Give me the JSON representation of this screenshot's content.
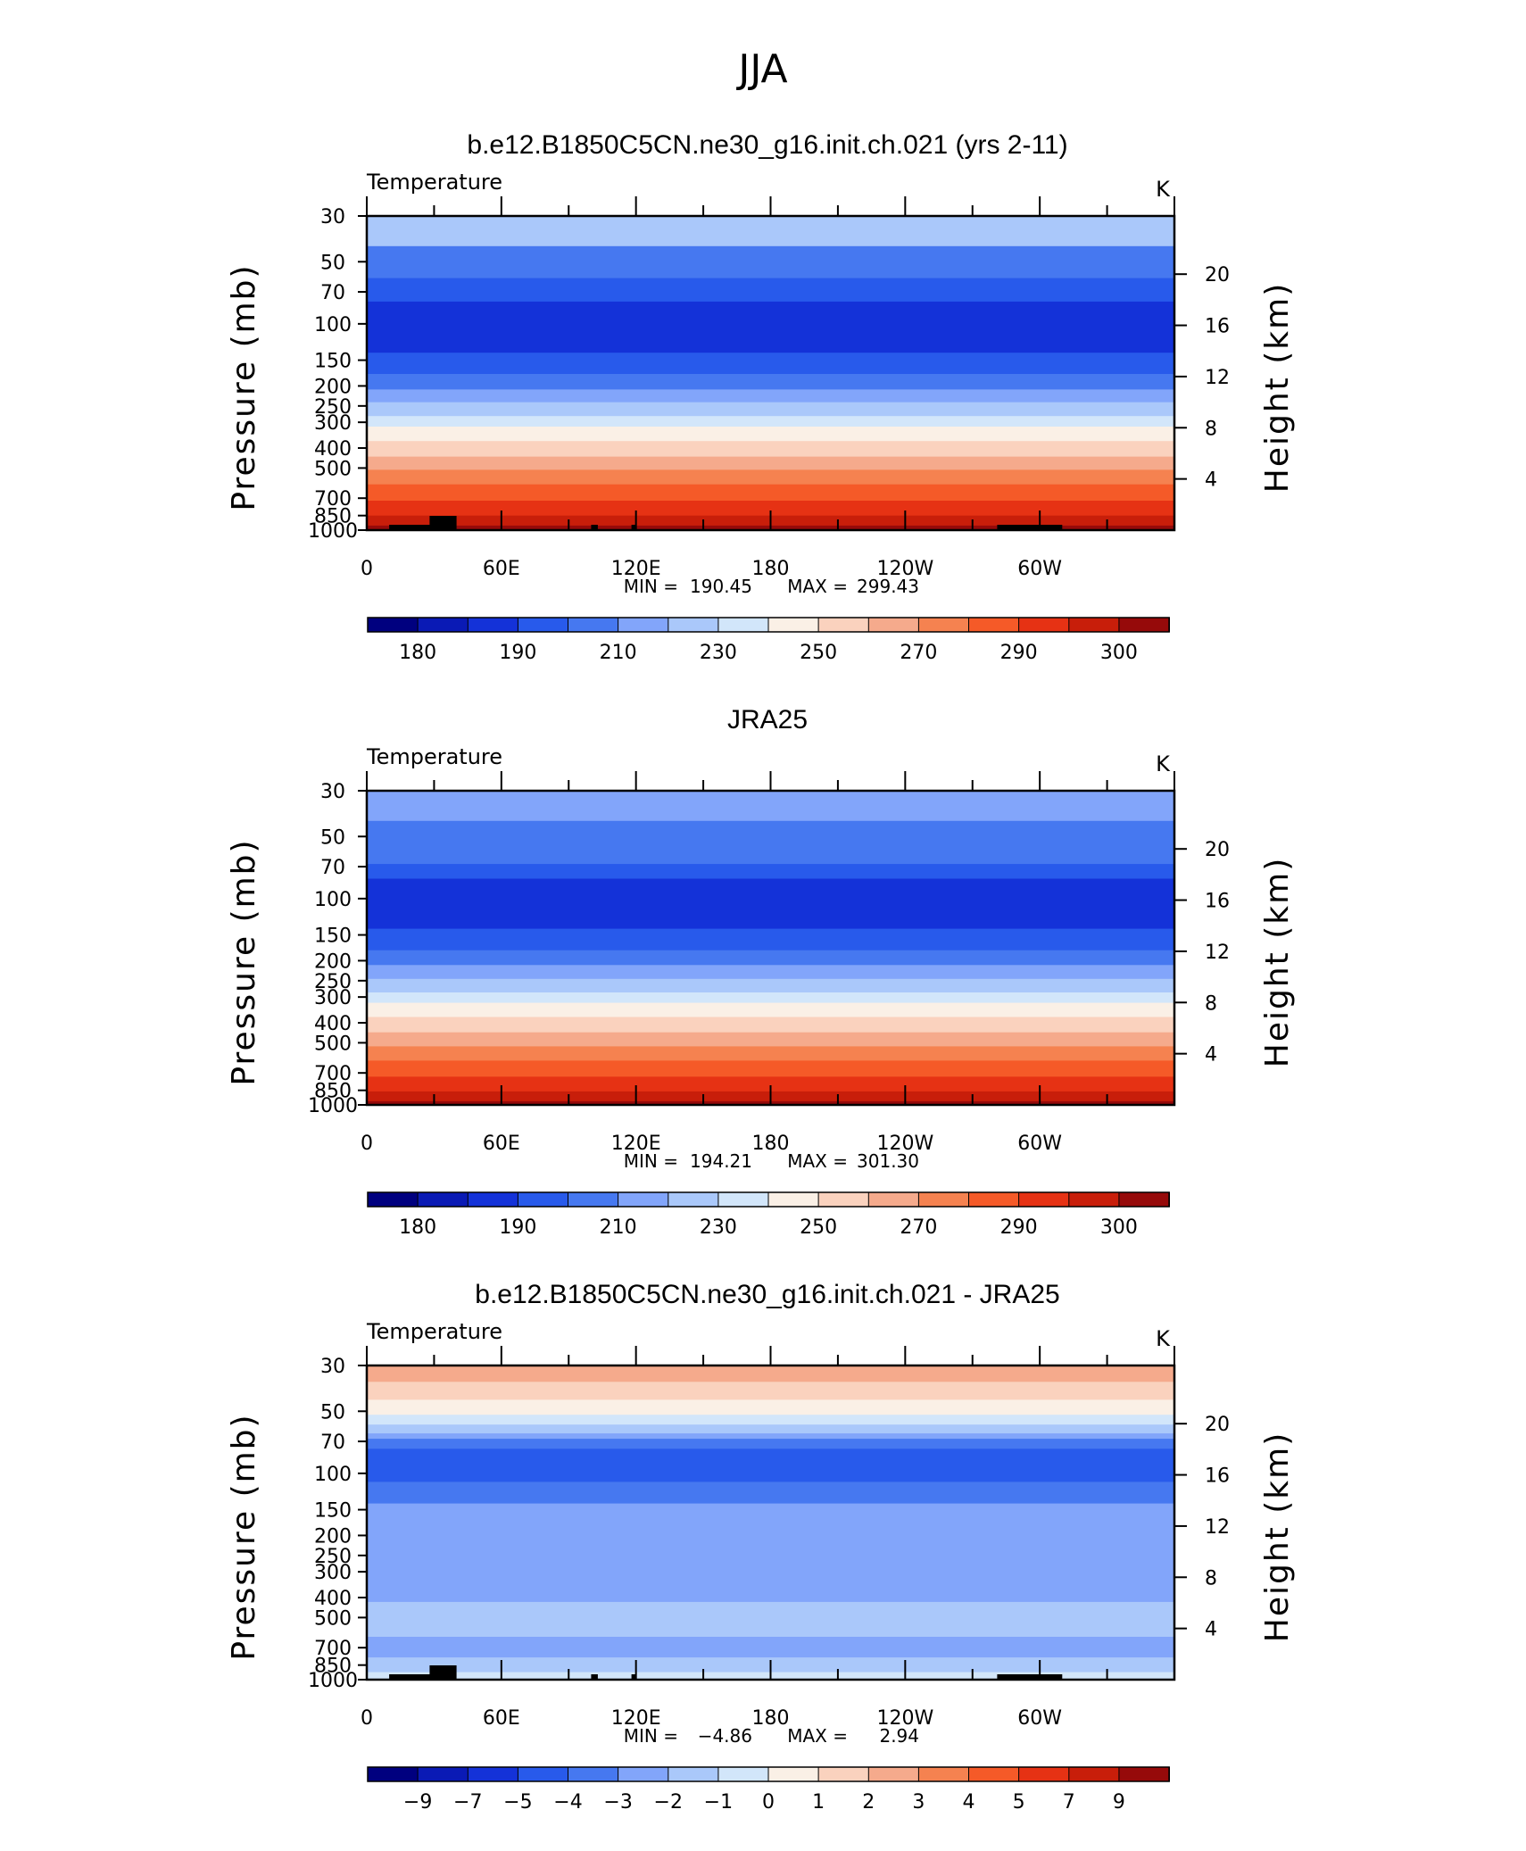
{
  "figure": {
    "main_title": "JJA"
  },
  "chart_data": [
    {
      "type": "heatmap",
      "title": "b.e12.B1850C5CN.ne30_g16.init.ch.021 (yrs 2-11)",
      "left_label": "Temperature",
      "right_label": "K",
      "ylabel": "Pressure (mb)",
      "ylabel_right": "Height (km)",
      "x_ticks": [
        "0",
        "60E",
        "120E",
        "180",
        "120W",
        "60W"
      ],
      "x_tick_lon": [
        0,
        60,
        120,
        180,
        240,
        300
      ],
      "xlim": [
        0,
        360
      ],
      "y_ticks": [
        30,
        50,
        70,
        100,
        150,
        200,
        250,
        300,
        400,
        500,
        700,
        850,
        1000
      ],
      "y_ticks_right": [
        20,
        16,
        12,
        8,
        4
      ],
      "ylim": [
        1000,
        30
      ],
      "y_scale": "log",
      "stats": {
        "min_label": "MIN =",
        "min": "190.45",
        "max_label": "MAX =",
        "max": "299.43"
      },
      "levels_by_pressure": [
        {
          "p": 30,
          "level": 6
        },
        {
          "p": 42,
          "level": 4
        },
        {
          "p": 60,
          "level": 3
        },
        {
          "p": 78,
          "level": 2
        },
        {
          "p": 120,
          "level": 2
        },
        {
          "p": 138,
          "level": 3
        },
        {
          "p": 175,
          "level": 4
        },
        {
          "p": 208,
          "level": 5
        },
        {
          "p": 240,
          "level": 6
        },
        {
          "p": 280,
          "level": 7
        },
        {
          "p": 315,
          "level": 8
        },
        {
          "p": 370,
          "level": 9
        },
        {
          "p": 440,
          "level": 10
        },
        {
          "p": 510,
          "level": 11
        },
        {
          "p": 600,
          "level": 12
        },
        {
          "p": 720,
          "level": 13
        },
        {
          "p": 850,
          "level": 14
        },
        {
          "p": 950,
          "level": 15
        }
      ],
      "terrain": true,
      "colorbar": {
        "colors": [
          "#00007f",
          "#0a1ab5",
          "#1432d8",
          "#285aeb",
          "#4678f0",
          "#82a5fa",
          "#aac8fa",
          "#d2e6fa",
          "#faf0e6",
          "#fad2be",
          "#f5aa8c",
          "#f58250",
          "#f55a28",
          "#e63214",
          "#c81e0a",
          "#960a0a"
        ],
        "labels": [
          "180",
          "190",
          "210",
          "230",
          "250",
          "270",
          "290",
          "300"
        ]
      }
    },
    {
      "type": "heatmap",
      "title": "JRA25",
      "left_label": "Temperature",
      "right_label": "K",
      "ylabel": "Pressure (mb)",
      "ylabel_right": "Height (km)",
      "x_ticks": [
        "0",
        "60E",
        "120E",
        "180",
        "120W",
        "60W"
      ],
      "x_tick_lon": [
        0,
        60,
        120,
        180,
        240,
        300
      ],
      "xlim": [
        0,
        360
      ],
      "y_ticks": [
        30,
        50,
        70,
        100,
        150,
        200,
        250,
        300,
        400,
        500,
        700,
        850,
        1000
      ],
      "y_ticks_right": [
        20,
        16,
        12,
        8,
        4
      ],
      "ylim": [
        1000,
        30
      ],
      "y_scale": "log",
      "stats": {
        "min_label": "MIN =",
        "min": "194.21",
        "max_label": "MAX =",
        "max": "301.30"
      },
      "levels_by_pressure": [
        {
          "p": 30,
          "level": 5
        },
        {
          "p": 42,
          "level": 4
        },
        {
          "p": 68,
          "level": 3
        },
        {
          "p": 80,
          "level": 2
        },
        {
          "p": 120,
          "level": 2
        },
        {
          "p": 140,
          "level": 3
        },
        {
          "p": 178,
          "level": 4
        },
        {
          "p": 210,
          "level": 5
        },
        {
          "p": 245,
          "level": 6
        },
        {
          "p": 285,
          "level": 7
        },
        {
          "p": 320,
          "level": 8
        },
        {
          "p": 375,
          "level": 9
        },
        {
          "p": 445,
          "level": 10
        },
        {
          "p": 520,
          "level": 11
        },
        {
          "p": 610,
          "level": 12
        },
        {
          "p": 730,
          "level": 13
        },
        {
          "p": 860,
          "level": 14
        },
        {
          "p": 960,
          "level": 15
        }
      ],
      "terrain": false,
      "colorbar": {
        "colors": [
          "#00007f",
          "#0a1ab5",
          "#1432d8",
          "#285aeb",
          "#4678f0",
          "#82a5fa",
          "#aac8fa",
          "#d2e6fa",
          "#faf0e6",
          "#fad2be",
          "#f5aa8c",
          "#f58250",
          "#f55a28",
          "#e63214",
          "#c81e0a",
          "#960a0a"
        ],
        "labels": [
          "180",
          "190",
          "210",
          "230",
          "250",
          "270",
          "290",
          "300"
        ]
      }
    },
    {
      "type": "heatmap",
      "title": "b.e12.B1850C5CN.ne30_g16.init.ch.021 - JRA25",
      "left_label": "Temperature",
      "right_label": "K",
      "ylabel": "Pressure (mb)",
      "ylabel_right": "Height (km)",
      "x_ticks": [
        "0",
        "60E",
        "120E",
        "180",
        "120W",
        "60W"
      ],
      "x_tick_lon": [
        0,
        60,
        120,
        180,
        240,
        300
      ],
      "xlim": [
        0,
        360
      ],
      "y_ticks": [
        30,
        50,
        70,
        100,
        150,
        200,
        250,
        300,
        400,
        500,
        700,
        850,
        1000
      ],
      "y_ticks_right": [
        20,
        16,
        12,
        8,
        4
      ],
      "ylim": [
        1000,
        30
      ],
      "y_scale": "log",
      "stats": {
        "min_label": "MIN =",
        "min": "−4.86",
        "max_label": "MAX =",
        "max": "2.94"
      },
      "levels_by_pressure": [
        {
          "p": 30,
          "level": 10
        },
        {
          "p": 36,
          "level": 9
        },
        {
          "p": 44,
          "level": 8
        },
        {
          "p": 52,
          "level": 7
        },
        {
          "p": 58,
          "level": 6
        },
        {
          "p": 64,
          "level": 5
        },
        {
          "p": 68,
          "level": 4
        },
        {
          "p": 76,
          "level": 3
        },
        {
          "p": 110,
          "level": 4
        },
        {
          "p": 140,
          "level": 5
        },
        {
          "p": 420,
          "level": 6
        },
        {
          "p": 620,
          "level": 5
        },
        {
          "p": 780,
          "level": 6
        },
        {
          "p": 920,
          "level": 7
        }
      ],
      "terrain": true,
      "colorbar": {
        "colors": [
          "#00007f",
          "#0a1ab5",
          "#1432d8",
          "#285aeb",
          "#4678f0",
          "#82a5fa",
          "#aac8fa",
          "#d2e6fa",
          "#faf0e6",
          "#fad2be",
          "#f5aa8c",
          "#f58250",
          "#f55a28",
          "#e63214",
          "#c81e0a",
          "#960a0a"
        ],
        "labels": [
          "−9",
          "−7",
          "−5",
          "−4",
          "−3",
          "−2",
          "−1",
          "0",
          "1",
          "2",
          "3",
          "4",
          "5",
          "7",
          "9"
        ]
      }
    }
  ]
}
